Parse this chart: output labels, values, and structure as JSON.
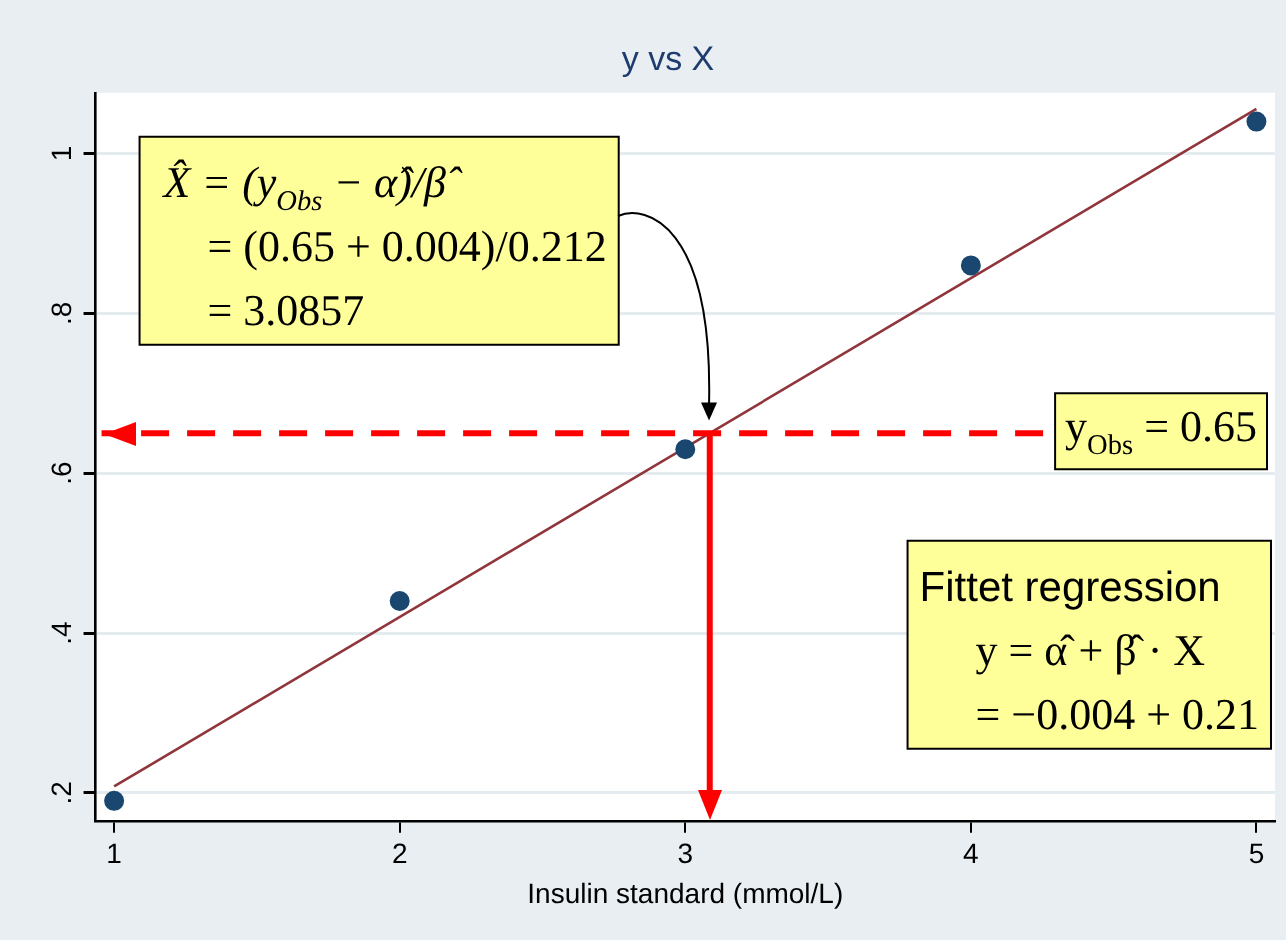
{
  "chart_data": {
    "type": "scatter",
    "title": "y vs X",
    "xlabel": "Insulin standard (mmol/L)",
    "x": [
      1,
      2,
      3,
      4,
      5
    ],
    "series": [
      {
        "color": "#1a476f",
        "values": [
          0.19,
          0.44,
          0.63,
          0.86,
          1.04
        ]
      },
      {
        "type": "line",
        "color": "#90353b",
        "x": [
          1,
          5
        ],
        "values": [
          0.208,
          1.056
        ],
        "marker": "none"
      }
    ],
    "xlim": [
      0.935,
      5.065
    ],
    "xticks": [
      1,
      2,
      3,
      4,
      5
    ],
    "ylim": [
      0.165,
      1.076
    ],
    "yticks": [
      {
        "value": 0.2,
        "label": ".2"
      },
      {
        "value": 0.4,
        "label": ".4"
      },
      {
        "value": 0.6,
        "label": ".6"
      },
      {
        "value": 0.8,
        "label": ".8"
      },
      1
    ],
    "ref_lines": [
      {
        "axis": "y",
        "value": 0.65,
        "label": "y$_{Obs}$ = 0.65",
        "color": "#ff0000",
        "line_style": "dashed"
      },
      {
        "axis": "x",
        "value": 3.0857,
        "label": null,
        "color": "#ff0000",
        "line_style": "solid"
      }
    ],
    "annotations": [
      "X̂ = (y$_{Obs}$ − α̂)/β̂\n= (0.65 + 0.004)/0.212\n= 3.0857",
      "Fittet regression\ny = α̂ + β̂ · X\n= −0.004 + 0.21"
    ],
    "grid": "y",
    "legend": false,
    "marker": "circle"
  }
}
